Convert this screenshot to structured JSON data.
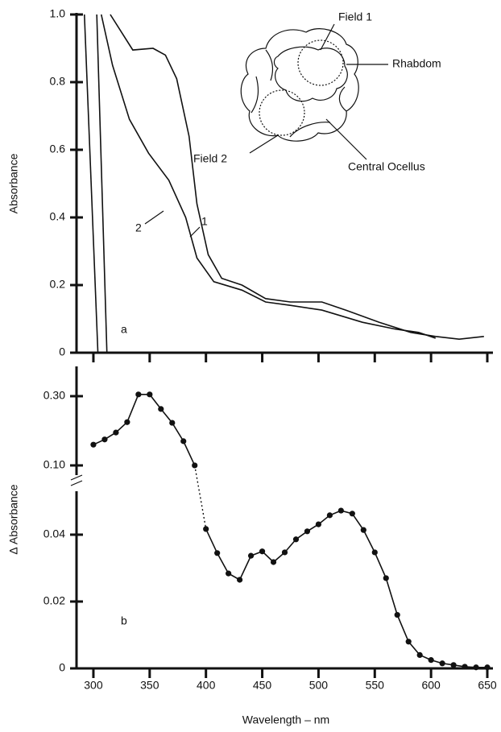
{
  "chart_data": [
    {
      "type": "line",
      "ylabel": "Absorbance",
      "annotation": "a",
      "xlim": [
        285,
        655
      ],
      "xticks": [
        300,
        350,
        400,
        450,
        500,
        550,
        600,
        650
      ],
      "ylim": [
        0,
        1
      ],
      "yticks": [
        0,
        0.2,
        0.4,
        0.6,
        0.8,
        {
          "value": 1,
          "label": "1.0"
        }
      ],
      "series": [
        {
          "name": "1",
          "color": "#111111",
          "x": [
            315,
            335,
            353,
            364,
            374,
            385,
            392,
            402,
            414,
            432,
            453,
            475,
            503,
            525,
            554,
            582,
            604,
            625,
            647
          ],
          "values": [
            1,
            0.895,
            0.9,
            0.88,
            0.81,
            0.64,
            0.44,
            0.29,
            0.22,
            0.2,
            0.16,
            0.15,
            0.15,
            0.125,
            0.09,
            0.06,
            0.048,
            0.04,
            0.048
          ]
        },
        {
          "name": "2",
          "color": "#111111",
          "x": [
            307,
            317,
            332,
            349,
            367,
            382,
            392,
            407,
            432,
            453,
            475,
            503,
            539,
            568,
            589,
            604
          ],
          "values": [
            1,
            0.85,
            0.69,
            0.59,
            0.51,
            0.4,
            0.28,
            0.21,
            0.185,
            0.15,
            0.14,
            0.126,
            0.09,
            0.07,
            0.06,
            0.043
          ]
        },
        {
          "color": "#111111",
          "x": [
            292,
            304
          ],
          "values": [
            1,
            0
          ]
        },
        {
          "color": "#111111",
          "x": [
            303,
            312
          ],
          "values": [
            1,
            0
          ]
        }
      ]
    },
    {
      "type": "line",
      "ylabel": "Δ Absorbance",
      "markers": true,
      "color": "#111111",
      "xlim": [
        285,
        655
      ],
      "ylim": [
        0.072,
        0.386
      ],
      "yticks": [
        {
          "value": 0.1,
          "label": "0.10"
        },
        {
          "value": 0.3,
          "label": "0.30"
        }
      ],
      "x": [
        300,
        310,
        320,
        330,
        340,
        350,
        360,
        370,
        380,
        390
      ],
      "values": [
        0.16,
        0.175,
        0.195,
        0.225,
        0.305,
        0.305,
        0.263,
        0.223,
        0.17,
        0.1
      ]
    },
    {
      "type": "line",
      "annotation": "b",
      "markers": true,
      "color": "#111111",
      "xlabel": "Wavelength – nm",
      "xlim": [
        285,
        655
      ],
      "xticks": [
        300,
        350,
        400,
        450,
        500,
        550,
        600,
        650
      ],
      "ylim": [
        0,
        0.053
      ],
      "yticks": [
        0,
        0.02,
        0.04
      ],
      "x": [
        400,
        410,
        420,
        430,
        440,
        450,
        460,
        470,
        480,
        490,
        500,
        510,
        520,
        530,
        540,
        550,
        560,
        570,
        580,
        590,
        600,
        610,
        620,
        630,
        640,
        650
      ],
      "values": [
        0.0417,
        0.0345,
        0.0284,
        0.0265,
        0.0337,
        0.035,
        0.0318,
        0.0347,
        0.0386,
        0.041,
        0.0431,
        0.0458,
        0.0472,
        0.0463,
        0.0414,
        0.0347,
        0.027,
        0.016,
        0.008,
        0.004,
        0.0025,
        0.0015,
        0.001,
        0.0005,
        0.0003,
        0.0003
      ]
    }
  ],
  "inset": {
    "labels": [
      "Field 1",
      "Rhabdom",
      "Field 2",
      "Central Ocellus"
    ]
  }
}
